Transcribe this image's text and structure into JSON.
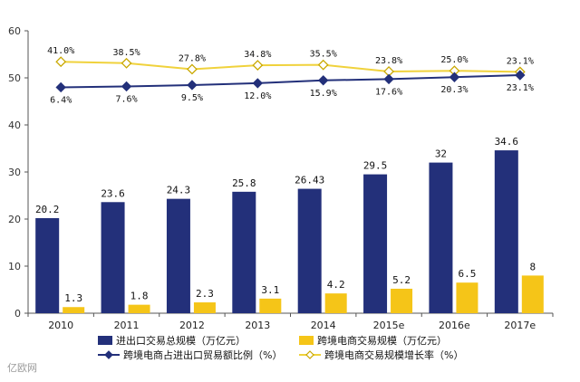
{
  "chart_data": {
    "type": "bar",
    "categories": [
      "2010",
      "2011",
      "2012",
      "2013",
      "2014",
      "2015e",
      "2016e",
      "2017e"
    ],
    "ylim": [
      0,
      60
    ],
    "yticks": [
      0,
      10,
      20,
      30,
      40,
      50,
      60
    ],
    "grid": false,
    "legend_position": "bottom",
    "series": [
      {
        "name": "进出口交易总规模（万亿元）",
        "kind": "bar",
        "color": "#23307a",
        "values": [
          20.2,
          23.6,
          24.3,
          25.8,
          26.43,
          29.5,
          32,
          34.6
        ],
        "labels": [
          "20.2",
          "23.6",
          "24.3",
          "25.8",
          "26.43",
          "29.5",
          "32",
          "34.6"
        ]
      },
      {
        "name": "跨境电商交易规模（万亿元）",
        "kind": "bar",
        "color": "#f5c518",
        "values": [
          1.3,
          1.8,
          2.3,
          3.1,
          4.2,
          5.2,
          6.5,
          8
        ],
        "labels": [
          "1.3",
          "1.8",
          "2.3",
          "3.1",
          "4.2",
          "5.2",
          "6.5",
          "8"
        ]
      },
      {
        "name": "跨境电商占进出口贸易额比例（%）",
        "kind": "line",
        "marker": "diamond",
        "color": "#23307a",
        "labels": [
          "6.4%",
          "7.6%",
          "9.5%",
          "12.0%",
          "15.9%",
          "17.6%",
          "20.3%",
          "23.1%"
        ]
      },
      {
        "name": "跨境电商交易规模增长率（%）",
        "kind": "line",
        "marker": "diamond-open",
        "color": "#f0d23c",
        "labels": [
          "41.0%",
          "38.5%",
          "27.8%",
          "34.8%",
          "35.5%",
          "23.8%",
          "25.0%",
          "23.1%"
        ]
      }
    ]
  },
  "watermark": "亿欧网"
}
